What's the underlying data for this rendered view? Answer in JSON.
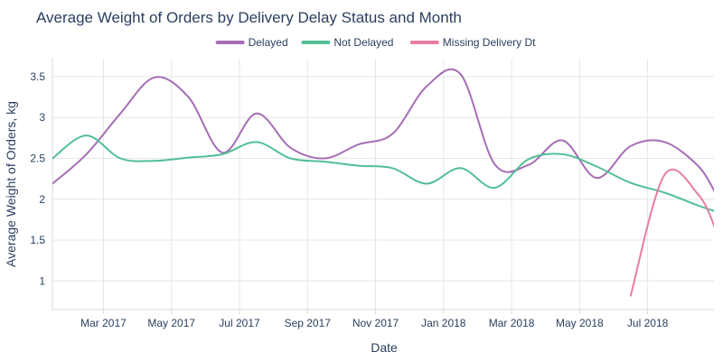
{
  "chart_data": {
    "type": "line",
    "title": "Average Weight of Orders by Delivery Delay Status and Month",
    "xlabel": "Date",
    "ylabel": "Average Weight of Orders, kg",
    "x_tick_labels": [
      "Mar 2017",
      "May 2017",
      "Jul 2017",
      "Sep 2017",
      "Nov 2017",
      "Jan 2018",
      "Mar 2018",
      "May 2018",
      "Jul 2018"
    ],
    "y_ticks": [
      1,
      1.5,
      2,
      2.5,
      3,
      3.5
    ],
    "y_tick_labels": [
      "1",
      "1.5",
      "2",
      "2.5",
      "3",
      "3.5"
    ],
    "ylim": [
      0.65,
      3.72
    ],
    "x_month_range": [
      1.5,
      20.95
    ],
    "legend_position": "top-center",
    "series": [
      {
        "name": "Delayed",
        "color": "#a56eb5",
        "months": [
          1.5,
          2.5,
          3.5,
          4.5,
          5.5,
          6.5,
          7.5,
          8.5,
          9.5,
          10.5,
          11.5,
          12.5,
          13.5,
          14.5,
          15.5,
          16.5,
          17.5,
          18.5,
          19.5,
          20.5,
          21.0
        ],
        "values": [
          2.19,
          2.55,
          3.05,
          3.49,
          3.25,
          2.57,
          3.05,
          2.63,
          2.5,
          2.67,
          2.8,
          3.38,
          3.53,
          2.43,
          2.42,
          2.72,
          2.26,
          2.65,
          2.7,
          2.4,
          2.07
        ]
      },
      {
        "name": "Not Delayed",
        "color": "#52bf96",
        "months": [
          1.5,
          2.5,
          3.5,
          4.5,
          5.5,
          6.5,
          7.5,
          8.5,
          9.5,
          10.5,
          11.5,
          12.5,
          13.5,
          14.5,
          15.5,
          16.5,
          17.5,
          18.5,
          19.5,
          20.5,
          21.0
        ],
        "values": [
          2.5,
          2.78,
          2.5,
          2.47,
          2.51,
          2.55,
          2.7,
          2.5,
          2.46,
          2.41,
          2.38,
          2.19,
          2.38,
          2.14,
          2.49,
          2.55,
          2.4,
          2.2,
          2.08,
          1.92,
          1.85
        ]
      },
      {
        "name": "Missing Delivery Dt",
        "color": "#e87ca4",
        "months": [
          18.5,
          19.5,
          20.5,
          21.0
        ],
        "values": [
          0.82,
          2.3,
          2.05,
          1.63
        ]
      }
    ]
  }
}
